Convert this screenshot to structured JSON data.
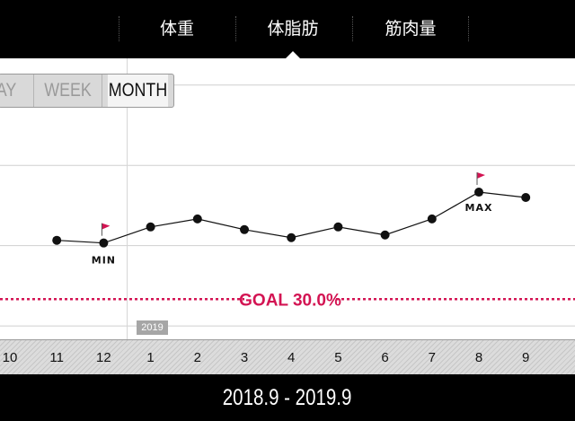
{
  "tabs": [
    {
      "label": "体重",
      "active": false
    },
    {
      "label": "体脂肪",
      "active": true
    },
    {
      "label": "筋肉量",
      "active": false
    }
  ],
  "period_selector": {
    "options": [
      "DAY",
      "WEEK",
      "MONTH"
    ],
    "visible": [
      "AY",
      "WEEK",
      "MONTH"
    ],
    "selected": "MONTH"
  },
  "chart_data": {
    "type": "line",
    "x": [
      "10",
      "11",
      "12",
      "1",
      "2",
      "3",
      "4",
      "5",
      "6",
      "7",
      "8",
      "9"
    ],
    "values": [
      null,
      32.2,
      32.1,
      32.7,
      33.0,
      32.6,
      32.3,
      32.7,
      32.4,
      33.0,
      34.0,
      33.8
    ],
    "ylim": [
      28.5,
      39.0
    ],
    "grid": true,
    "goal": {
      "value": 30.0,
      "label": "GOAL 30.0%"
    },
    "min": {
      "label": "MIN",
      "index": 2
    },
    "max": {
      "label": "MAX",
      "index": 10
    },
    "year_marker": {
      "label": "2019",
      "index": 3
    },
    "colors": {
      "line": "#111111",
      "goal": "#d31453",
      "flag": "#d31453",
      "grid": "#cfcfcf"
    }
  },
  "footer": {
    "date_range": "2018.9 - 2019.9"
  }
}
